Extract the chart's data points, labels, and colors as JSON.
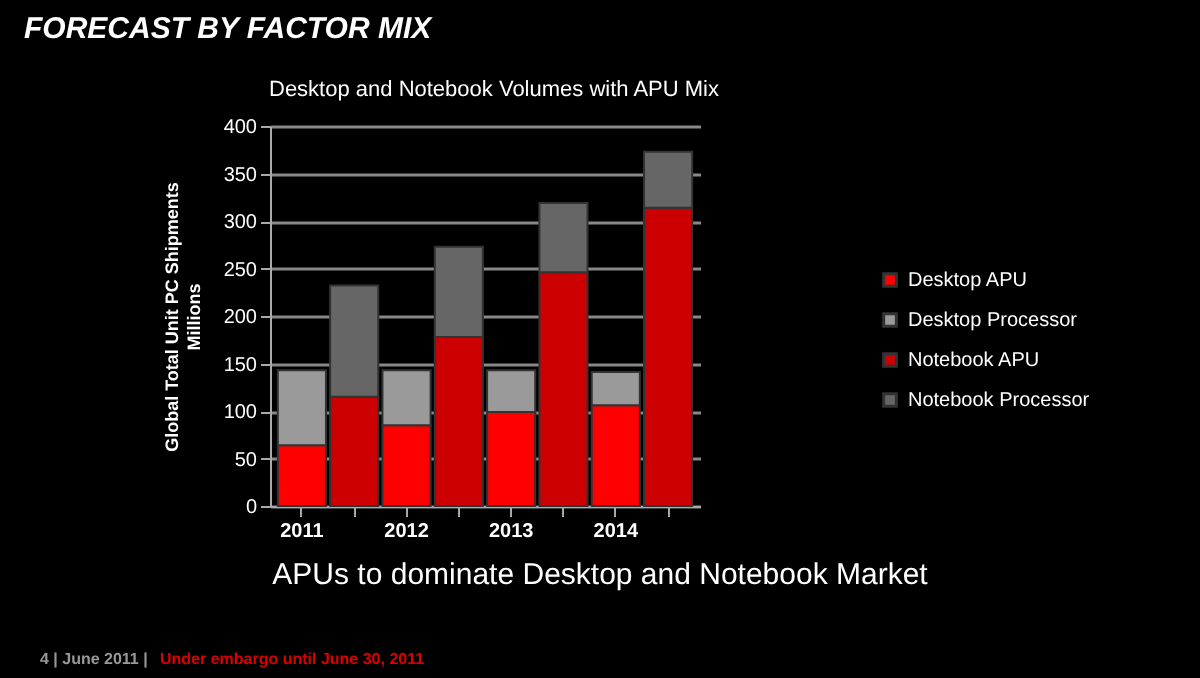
{
  "chart_data": {
    "type": "bar",
    "stacked": true,
    "title": "FORECAST BY FACTOR MIX",
    "subtitle": "Desktop and Notebook Volumes with APU Mix",
    "ylabel": "Global Total Unit PC Shipments\nMillions",
    "categories": [
      "2011",
      null,
      "2012",
      null,
      "2013",
      null,
      "2014",
      null
    ],
    "series": [
      {
        "name": "Desktop APU",
        "color": "#ff0000",
        "values": [
          64,
          null,
          85,
          null,
          99,
          null,
          106,
          null
        ]
      },
      {
        "name": "Desktop Processor",
        "color": "#9a9a9a",
        "values": [
          79,
          null,
          58,
          null,
          44,
          null,
          35,
          null
        ]
      },
      {
        "name": "Notebook APU",
        "color": "#cc0000",
        "values": [
          null,
          115,
          null,
          178,
          null,
          246,
          null,
          314
        ]
      },
      {
        "name": "Notebook Processor",
        "color": "#666666",
        "values": [
          null,
          117,
          null,
          95,
          null,
          73,
          null,
          59
        ]
      }
    ],
    "ylim": [
      0,
      400
    ],
    "yticks": [
      0,
      50,
      100,
      150,
      200,
      250,
      300,
      350,
      400
    ],
    "grid": "y",
    "legend": "right",
    "annotations": [
      "APUs to dominate Desktop and Notebook Market",
      "4 | June 2011 |",
      "Under embargo until June 30, 2011"
    ]
  }
}
